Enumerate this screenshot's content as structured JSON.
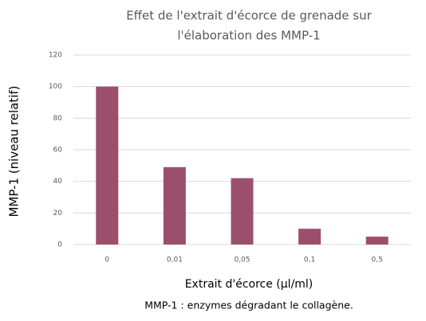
{
  "chart_data": {
    "type": "bar",
    "title": [
      "Effet de l'extrait d'écorce de grenade sur",
      "l'élaboration des MMP-1"
    ],
    "y_label": "MMP-1 (niveau relatif)",
    "x_label": "Extrait d'écorce (µl/ml)",
    "caption": "MMP-1 : enzymes dégradant le collagène.",
    "categories": [
      "0",
      "0,01",
      "0,05",
      "0,1",
      "0,5"
    ],
    "values": [
      100,
      49,
      42,
      10,
      5
    ],
    "color": "#9c4f6c",
    "ylim": [
      0,
      120
    ],
    "yticks": [
      0,
      20,
      40,
      60,
      80,
      100,
      120
    ],
    "grid": true
  }
}
